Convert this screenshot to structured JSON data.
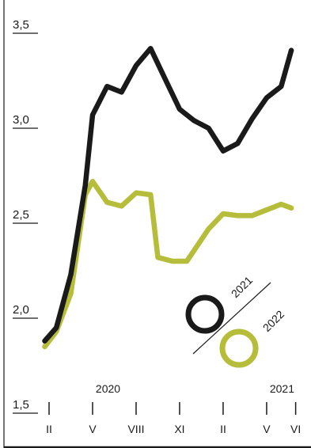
{
  "chart_data": {
    "type": "line",
    "ylim": [
      1.5,
      3.5
    ],
    "y_ticks": [
      "3,5",
      "3,0",
      "2,5",
      "2,0",
      "1,5"
    ],
    "y_tick_values": [
      3.5,
      3.0,
      2.5,
      2.0,
      1.5
    ],
    "x_ticks": [
      "II",
      "V",
      "VIII",
      "XI",
      "II",
      "V",
      "VI"
    ],
    "x_tick_values": [
      0,
      3,
      6,
      9,
      12,
      15,
      17
    ],
    "years": [
      {
        "label": "2020",
        "x": 4.5
      },
      {
        "label": "2021",
        "x": 16.5
      }
    ],
    "series": [
      {
        "name": "2021",
        "color": "#1a1a1a",
        "x": [
          -0.3,
          0.5,
          1.5,
          2.5,
          3.0,
          4.0,
          5.0,
          6.0,
          7.0,
          8.0,
          9.0,
          10.0,
          11.0,
          12.0,
          13.0,
          14.0,
          15.0,
          16.0,
          16.7
        ],
        "values": [
          1.88,
          1.95,
          2.23,
          2.7,
          3.07,
          3.22,
          3.19,
          3.33,
          3.42,
          3.26,
          3.1,
          3.04,
          3.0,
          2.88,
          2.92,
          3.05,
          3.16,
          3.22,
          3.41
        ]
      },
      {
        "name": "2022",
        "color": "#b5bd3a",
        "x": [
          -0.3,
          0.5,
          1.5,
          2.5,
          3.0,
          4.0,
          5.0,
          6.0,
          7.0,
          7.5,
          8.5,
          9.5,
          11.0,
          12.0,
          13.0,
          14.0,
          15.0,
          16.0,
          16.7
        ],
        "values": [
          1.85,
          1.93,
          2.13,
          2.65,
          2.72,
          2.61,
          2.59,
          2.66,
          2.65,
          2.32,
          2.3,
          2.3,
          2.47,
          2.55,
          2.54,
          2.54,
          2.57,
          2.6,
          2.58
        ]
      }
    ]
  }
}
